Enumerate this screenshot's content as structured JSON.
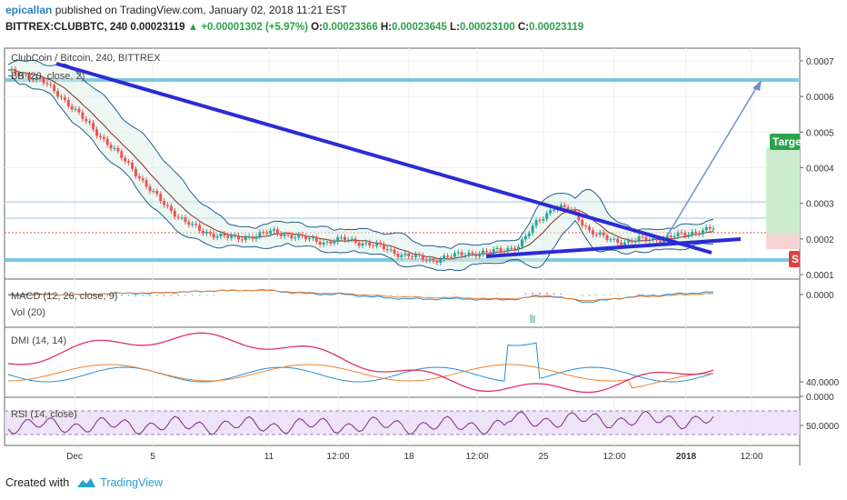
{
  "header": {
    "author": "epicallan",
    "published": "published on TradingView.com, January 02, 2018 11:21 EST",
    "symbol": "BITTREX:CLUBBTC, 240",
    "last": "0.00023119",
    "change": "+0.00001302 (+5.97%)",
    "open_label": "O:",
    "open": "0.00023366",
    "high_label": "H:",
    "high": "0.00023645",
    "low_label": "L:",
    "low": "0.00023100",
    "close_label": "C:",
    "close": "0.00023119"
  },
  "panes": {
    "main_title": "ClubCoin / Bitcoin, 240, BITTREX",
    "bb_label": "BB (20, close, 2)",
    "macd_label": "MACD (12, 26, close, 9)",
    "vol_label": "Vol (20)",
    "dmi_label": "DMI (14, 14)",
    "rsi_label": "RSI (14, close)",
    "target_label": "Targe",
    "stop_label": "S"
  },
  "footer": {
    "created": "Created with",
    "brand": "TradingView"
  },
  "colors": {
    "trendline": "#2b2bd6",
    "support": "#7ec8dc",
    "up": "#26a69a",
    "down": "#ef5350",
    "bb": "#1f5f8b",
    "basis": "#8b2a2a",
    "macd": "#1f8fd6",
    "signal": "#f08030",
    "dmi_plus": "#1f8fd6",
    "dmi_minus": "#f08030",
    "adx": "#e0306a",
    "rsi": "#7b2a8a",
    "rsi_band": "#e8d8f4"
  },
  "chart_data": {
    "type": "line",
    "x_ticks": [
      "Dec",
      "5",
      "11",
      "12:00",
      "18",
      "12:00",
      "25",
      "12:00",
      "2018",
      "12:00"
    ],
    "price_axis": {
      "ticks": [
        "0.0007",
        "0.0006",
        "0.0005",
        "0.0004",
        "0.0003",
        "0.0002",
        "0.0001"
      ],
      "ylim": [
        0.0001,
        0.0007
      ]
    },
    "macd_axis": {
      "ticks": [
        "0.0000"
      ]
    },
    "dmi_axis": {
      "ticks": [
        "40.0000",
        "0.0000"
      ]
    },
    "rsi_axis": {
      "ticks": [
        "50.0000"
      ]
    },
    "close_series": [
      0.00067,
      0.00066,
      0.00064,
      0.0006,
      0.00055,
      0.0005,
      0.00045,
      0.0004,
      0.00034,
      0.00029,
      0.00025,
      0.00022,
      0.00021,
      0.0002,
      0.00021,
      0.00022,
      0.00021,
      0.0002,
      0.00019,
      0.0002,
      0.00019,
      0.00018,
      0.00016,
      0.00015,
      0.00014,
      0.00015,
      0.00016,
      0.00016,
      0.00017,
      0.00018,
      0.00025,
      0.00029,
      0.00028,
      0.00022,
      0.0002,
      0.00019,
      0.0002,
      0.0002,
      0.00021,
      0.00022,
      0.00023
    ]
  }
}
